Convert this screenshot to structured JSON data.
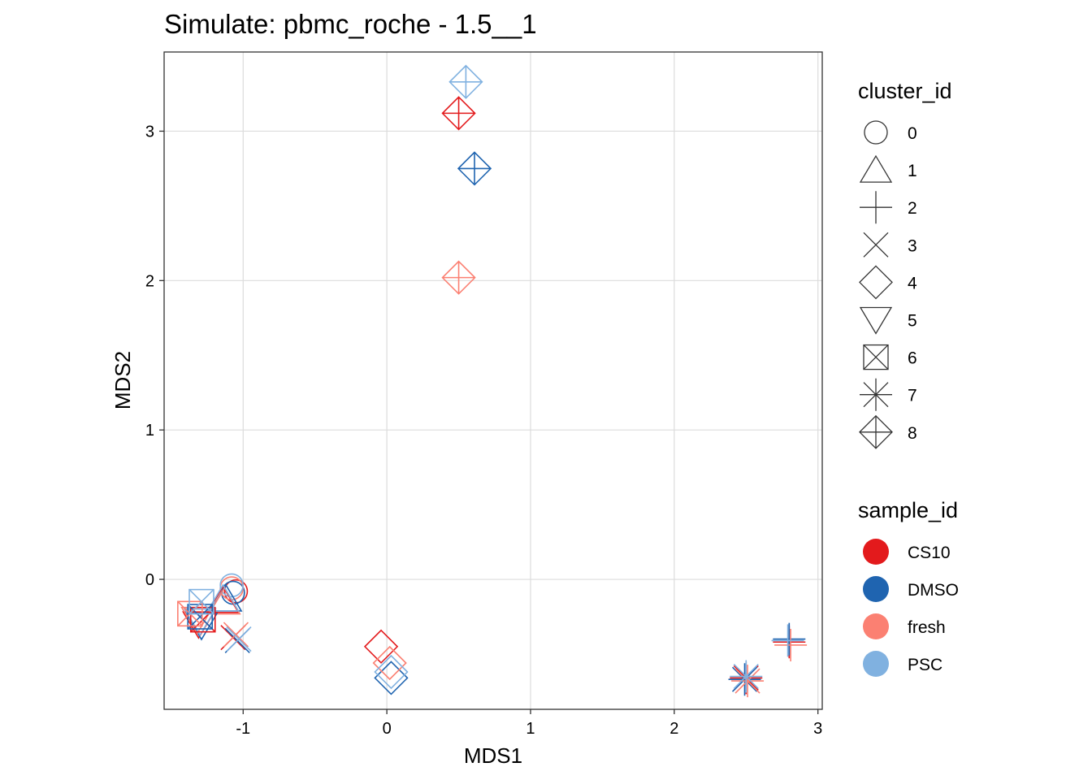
{
  "chart_data": {
    "type": "scatter",
    "title": "Simulate: pbmc_roche - 1.5__1",
    "xlabel": "MDS1",
    "ylabel": "MDS2",
    "xlim": [
      -1.55,
      3.03
    ],
    "ylim": [
      -0.87,
      3.53
    ],
    "x_ticks": [
      -1,
      0,
      1,
      2,
      3
    ],
    "y_ticks": [
      0,
      1,
      2,
      3
    ],
    "x_tick_labels": [
      "-1",
      "0",
      "1",
      "2",
      "3"
    ],
    "y_tick_labels": [
      "0",
      "1",
      "2",
      "3"
    ],
    "grid": true,
    "legend_position": "right",
    "shape_legend": {
      "title": "cluster_id",
      "entries": [
        {
          "label": "0",
          "shape": "circle"
        },
        {
          "label": "1",
          "shape": "triangle"
        },
        {
          "label": "2",
          "shape": "plus"
        },
        {
          "label": "3",
          "shape": "cross"
        },
        {
          "label": "4",
          "shape": "diamond"
        },
        {
          "label": "5",
          "shape": "triangle-down"
        },
        {
          "label": "6",
          "shape": "square-cross"
        },
        {
          "label": "7",
          "shape": "asterisk"
        },
        {
          "label": "8",
          "shape": "diamond-plus"
        }
      ]
    },
    "color_legend": {
      "title": "sample_id",
      "entries": [
        {
          "label": "CS10",
          "color": "#e31a1c"
        },
        {
          "label": "DMSO",
          "color": "#1f64b0"
        },
        {
          "label": "fresh",
          "color": "#fb8072"
        },
        {
          "label": "PSC",
          "color": "#80b1e0"
        }
      ]
    },
    "points": [
      {
        "cluster": "0",
        "sample": "CS10",
        "x": -1.05,
        "y": -0.08
      },
      {
        "cluster": "0",
        "sample": "DMSO",
        "x": -1.07,
        "y": -0.09
      },
      {
        "cluster": "0",
        "sample": "fresh",
        "x": -1.08,
        "y": -0.06
      },
      {
        "cluster": "0",
        "sample": "PSC",
        "x": -1.08,
        "y": -0.04
      },
      {
        "cluster": "1",
        "sample": "CS10",
        "x": -1.14,
        "y": -0.14
      },
      {
        "cluster": "1",
        "sample": "DMSO",
        "x": -1.12,
        "y": -0.13
      },
      {
        "cluster": "1",
        "sample": "fresh",
        "x": -1.13,
        "y": -0.15
      },
      {
        "cluster": "1",
        "sample": "PSC",
        "x": -1.14,
        "y": -0.13
      },
      {
        "cluster": "2",
        "sample": "CS10",
        "x": 2.8,
        "y": -0.42
      },
      {
        "cluster": "2",
        "sample": "DMSO",
        "x": 2.8,
        "y": -0.4
      },
      {
        "cluster": "2",
        "sample": "fresh",
        "x": 2.81,
        "y": -0.44
      },
      {
        "cluster": "2",
        "sample": "PSC",
        "x": 2.79,
        "y": -0.41
      },
      {
        "cluster": "3",
        "sample": "CS10",
        "x": -1.07,
        "y": -0.39
      },
      {
        "cluster": "3",
        "sample": "DMSO",
        "x": -1.04,
        "y": -0.41
      },
      {
        "cluster": "3",
        "sample": "fresh",
        "x": -1.05,
        "y": -0.37
      },
      {
        "cluster": "3",
        "sample": "PSC",
        "x": -1.03,
        "y": -0.4
      },
      {
        "cluster": "4",
        "sample": "CS10",
        "x": -0.04,
        "y": -0.45
      },
      {
        "cluster": "4",
        "sample": "DMSO",
        "x": 0.03,
        "y": -0.66
      },
      {
        "cluster": "4",
        "sample": "fresh",
        "x": 0.02,
        "y": -0.56
      },
      {
        "cluster": "4",
        "sample": "PSC",
        "x": 0.03,
        "y": -0.62
      },
      {
        "cluster": "5",
        "sample": "CS10",
        "x": -1.31,
        "y": -0.3
      },
      {
        "cluster": "5",
        "sample": "DMSO",
        "x": -1.29,
        "y": -0.31
      },
      {
        "cluster": "5",
        "sample": "fresh",
        "x": -1.32,
        "y": -0.27
      },
      {
        "cluster": "5",
        "sample": "PSC",
        "x": -1.3,
        "y": -0.28
      },
      {
        "cluster": "6",
        "sample": "CS10",
        "x": -1.28,
        "y": -0.27
      },
      {
        "cluster": "6",
        "sample": "DMSO",
        "x": -1.3,
        "y": -0.25
      },
      {
        "cluster": "6",
        "sample": "fresh",
        "x": -1.37,
        "y": -0.23
      },
      {
        "cluster": "6",
        "sample": "PSC",
        "x": -1.29,
        "y": -0.15
      },
      {
        "cluster": "7",
        "sample": "CS10",
        "x": 2.5,
        "y": -0.66
      },
      {
        "cluster": "7",
        "sample": "DMSO",
        "x": 2.49,
        "y": -0.67
      },
      {
        "cluster": "7",
        "sample": "fresh",
        "x": 2.51,
        "y": -0.68
      },
      {
        "cluster": "7",
        "sample": "PSC",
        "x": 2.5,
        "y": -0.65
      },
      {
        "cluster": "8",
        "sample": "CS10",
        "x": 0.5,
        "y": 3.12
      },
      {
        "cluster": "8",
        "sample": "DMSO",
        "x": 0.61,
        "y": 2.75
      },
      {
        "cluster": "8",
        "sample": "fresh",
        "x": 0.5,
        "y": 2.02
      },
      {
        "cluster": "8",
        "sample": "PSC",
        "x": 0.55,
        "y": 3.33
      }
    ]
  }
}
